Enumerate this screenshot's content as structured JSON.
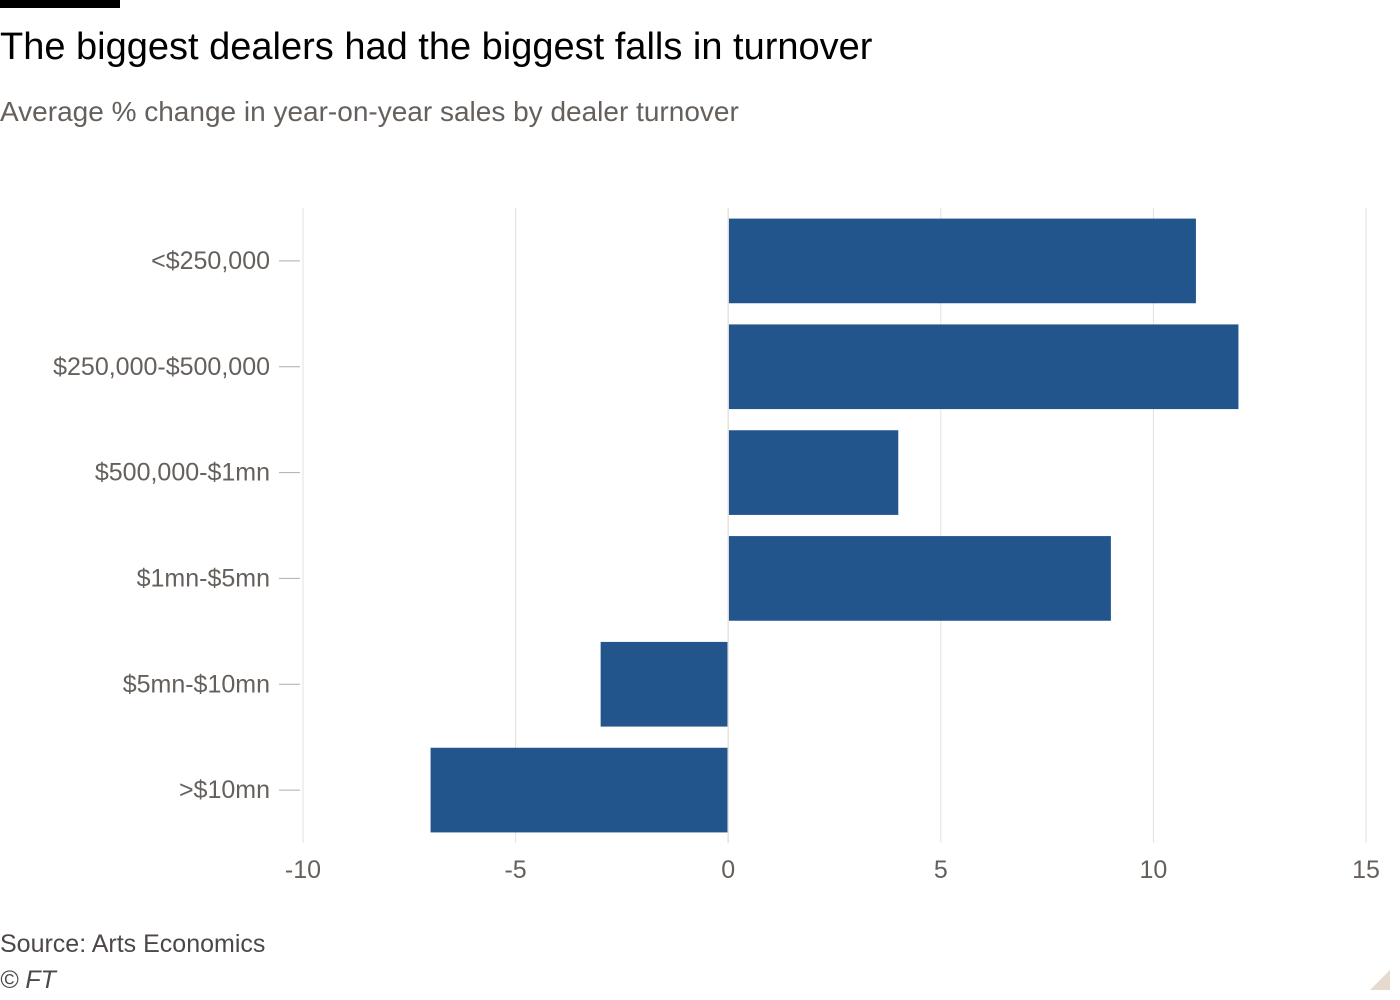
{
  "header": {
    "title": "The biggest dealers had the biggest falls in turnover",
    "subtitle": "Average % change in year-on-year sales by dealer turnover"
  },
  "footer": {
    "source": "Source: Arts Economics",
    "copyright": "© FT"
  },
  "colors": {
    "bar": "#21558b",
    "grid": "#e6e0da",
    "tick": "#b3aca6"
  },
  "chart_data": {
    "type": "bar",
    "orientation": "horizontal",
    "title": "The biggest dealers had the biggest falls in turnover",
    "subtitle": "Average % change in year-on-year sales by dealer turnover",
    "categories": [
      "<$250,000",
      "$250,000-$500,000",
      "$500,000-$1mn",
      "$1mn-$5mn",
      "$5mn-$10mn",
      ">$10mn"
    ],
    "values": [
      11,
      12,
      4,
      9,
      -3,
      -7
    ],
    "xlim": [
      -10,
      15
    ],
    "xticks": [
      -10,
      -5,
      0,
      5,
      10,
      15
    ],
    "xlabel": "",
    "ylabel": "",
    "grid": "vertical",
    "legend": "none"
  }
}
